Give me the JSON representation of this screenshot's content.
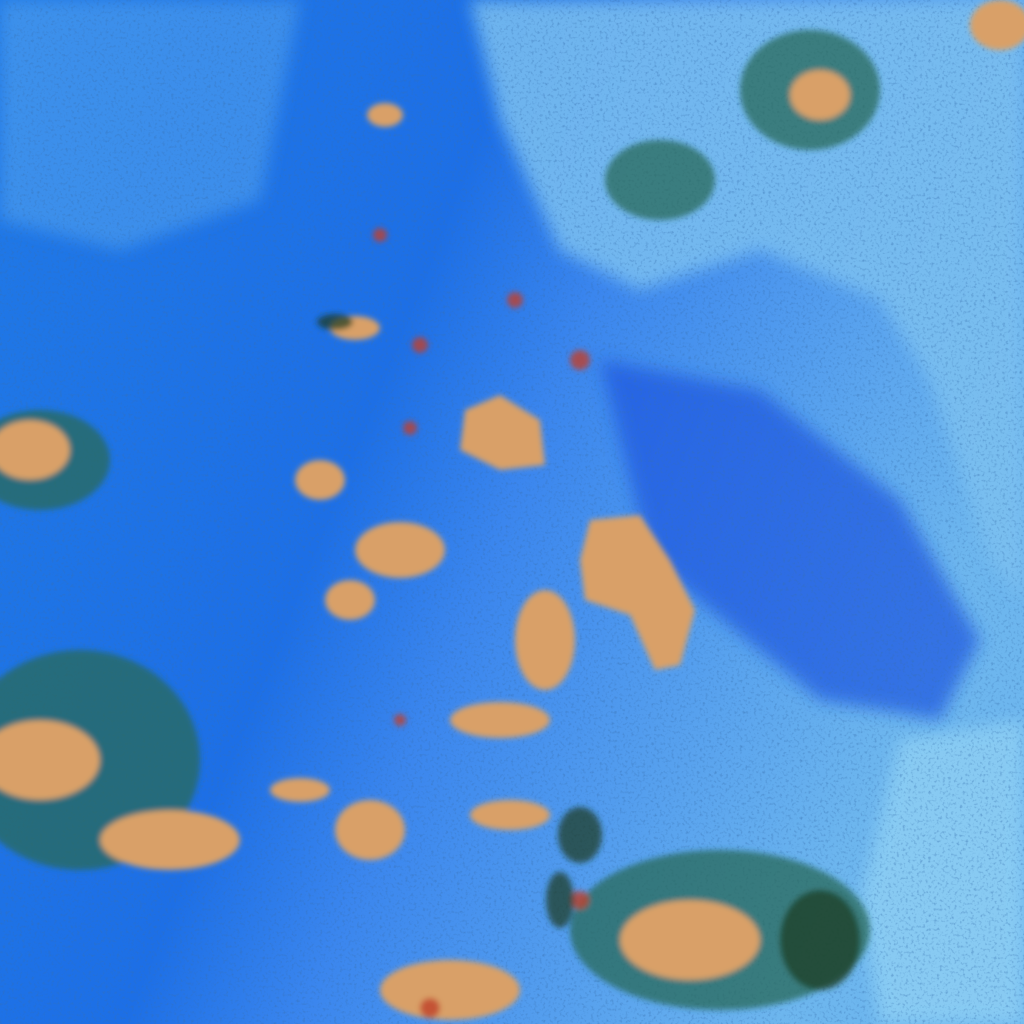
{
  "image": {
    "kind": "false-color satellite imagery",
    "colors": {
      "ocean_deep": "#1a5fe0",
      "ocean_mid": "#2a86ee",
      "ocean_light": "#6fb8f0",
      "haze": "#8fd0f4",
      "cloud_warm": "#d9a068",
      "cloud_hot": "#c0402a",
      "cloud_edge": "#2a6a5a",
      "speckle": "#0a2a6a"
    }
  }
}
